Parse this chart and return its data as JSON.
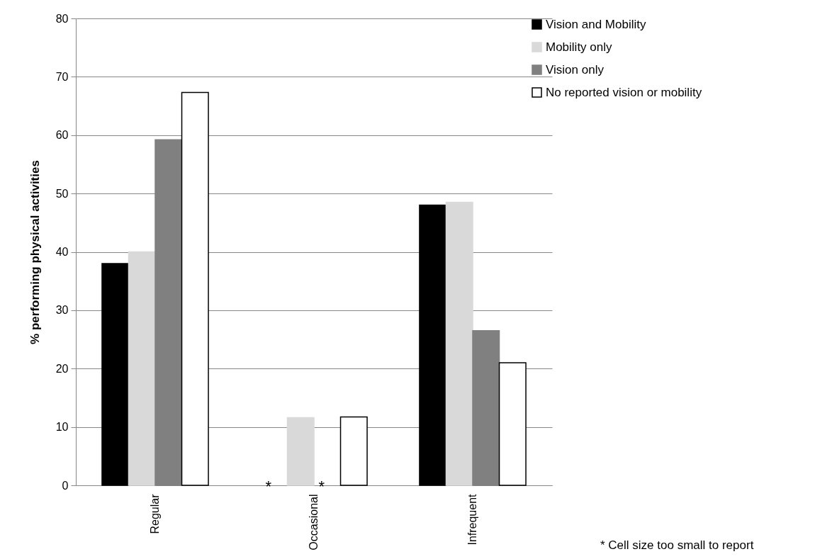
{
  "chart_data": {
    "type": "bar",
    "ylabel": "% performing physical activities",
    "categories": [
      "Regular",
      "Occasional",
      "Infrequent"
    ],
    "series": [
      {
        "name": "Vision and Mobility",
        "color": "#000000",
        "values": [
          38,
          null,
          48
        ]
      },
      {
        "name": "Mobility only",
        "color": "#d9d9d9",
        "values": [
          40,
          11.6,
          48.5
        ]
      },
      {
        "name": "Vision only",
        "color": "#808080",
        "values": [
          59.2,
          null,
          26.5
        ]
      },
      {
        "name": "No reported vision or mobility",
        "color": "#ffffff",
        "values": [
          67.3,
          11.7,
          21
        ]
      }
    ],
    "ylim": [
      0,
      80
    ],
    "yticks": [
      0,
      10,
      20,
      30,
      40,
      50,
      60,
      70,
      80
    ],
    "grid": "y",
    "legend": "right",
    "annotations": [
      {
        "text": "*",
        "x": "Occasional",
        "y": 0
      },
      {
        "text": "*",
        "x": "Occasional",
        "y": 0
      },
      "* Cell size too small to report"
    ]
  }
}
